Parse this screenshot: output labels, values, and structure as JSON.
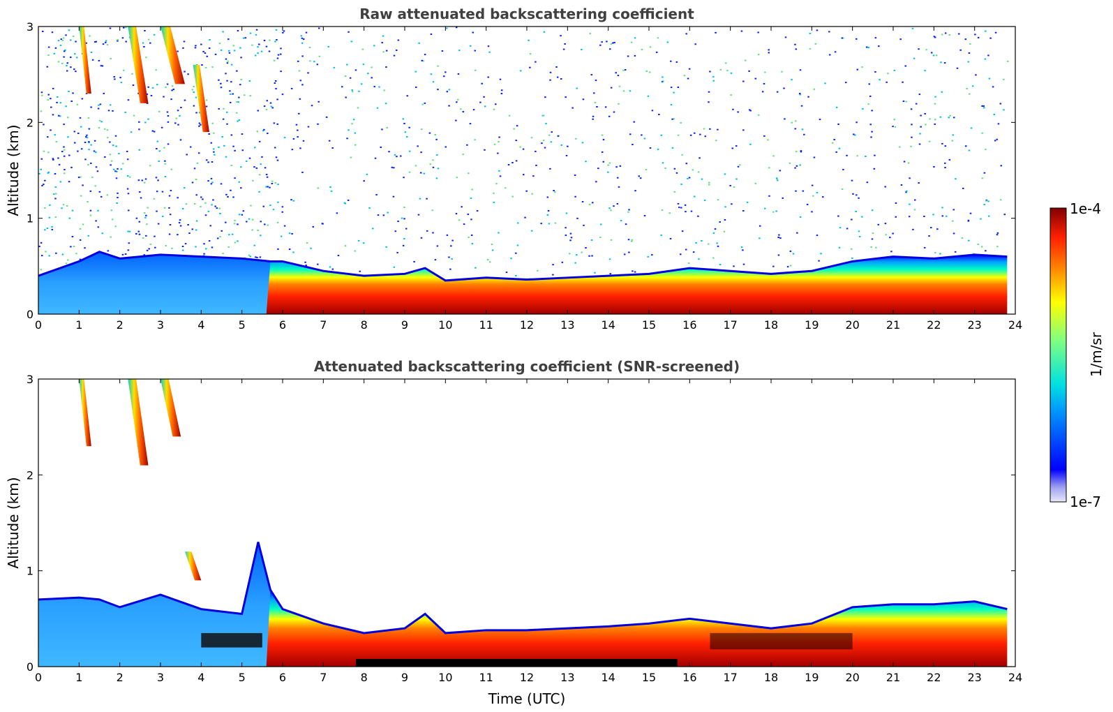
{
  "chart_data": [
    {
      "type": "heatmap",
      "title": "Raw attenuated backscattering coefficient",
      "xlabel": "",
      "ylabel": "Altitude (km)",
      "xlim": [
        0,
        24
      ],
      "ylim": [
        0,
        3
      ],
      "xticks": [
        0,
        1,
        2,
        3,
        4,
        5,
        6,
        7,
        8,
        9,
        10,
        11,
        12,
        13,
        14,
        15,
        16,
        17,
        18,
        19,
        20,
        21,
        22,
        23,
        24
      ],
      "yticks": [
        0,
        1,
        2,
        3
      ],
      "screened": false,
      "boundary_layer_top_km": {
        "time": [
          0,
          1,
          1.5,
          2,
          3,
          4,
          5,
          5.7,
          6,
          7,
          8,
          9,
          9.5,
          10,
          11,
          12,
          13,
          14,
          15,
          16,
          17,
          18,
          19,
          20,
          21,
          22,
          23,
          23.8
        ],
        "height": [
          0.4,
          0.55,
          0.65,
          0.58,
          0.62,
          0.6,
          0.58,
          0.55,
          0.55,
          0.45,
          0.4,
          0.42,
          0.48,
          0.35,
          0.38,
          0.36,
          0.38,
          0.4,
          0.42,
          0.48,
          0.45,
          0.42,
          0.45,
          0.55,
          0.6,
          0.58,
          0.62,
          0.6
        ]
      },
      "cloud_streaks": [
        {
          "t0": 1.0,
          "t1": 1.3,
          "z0": 2.3,
          "z1": 3.0
        },
        {
          "t0": 2.2,
          "t1": 2.7,
          "z0": 2.2,
          "z1": 3.0
        },
        {
          "t0": 3.0,
          "t1": 3.6,
          "z0": 2.4,
          "z1": 3.0
        },
        {
          "t0": 3.8,
          "t1": 4.2,
          "z0": 1.9,
          "z1": 2.6
        }
      ]
    },
    {
      "type": "heatmap",
      "title": "Attenuated backscattering coefficient (SNR-screened)",
      "xlabel": "Time (UTC)",
      "ylabel": "Altitude (km)",
      "xlim": [
        0,
        24
      ],
      "ylim": [
        0,
        3
      ],
      "xticks": [
        0,
        1,
        2,
        3,
        4,
        5,
        6,
        7,
        8,
        9,
        10,
        11,
        12,
        13,
        14,
        15,
        16,
        17,
        18,
        19,
        20,
        21,
        22,
        23,
        24
      ],
      "yticks": [
        0,
        1,
        2,
        3
      ],
      "screened": true,
      "boundary_layer_top_km": {
        "time": [
          0,
          1,
          1.5,
          2,
          3,
          4,
          5,
          5.4,
          5.7,
          6,
          7,
          8,
          9,
          9.5,
          10,
          11,
          12,
          13,
          14,
          15,
          16,
          17,
          18,
          19,
          20,
          21,
          22,
          23,
          23.8
        ],
        "height": [
          0.7,
          0.72,
          0.7,
          0.62,
          0.75,
          0.6,
          0.55,
          1.3,
          0.8,
          0.6,
          0.45,
          0.35,
          0.4,
          0.55,
          0.35,
          0.38,
          0.38,
          0.4,
          0.42,
          0.45,
          0.5,
          0.45,
          0.4,
          0.45,
          0.62,
          0.65,
          0.65,
          0.68,
          0.6
        ]
      },
      "cloud_streaks": [
        {
          "t0": 1.0,
          "t1": 1.3,
          "z0": 2.3,
          "z1": 3.0
        },
        {
          "t0": 2.2,
          "t1": 2.7,
          "z0": 2.1,
          "z1": 3.0
        },
        {
          "t0": 3.0,
          "t1": 3.5,
          "z0": 2.4,
          "z1": 3.0
        },
        {
          "t0": 3.6,
          "t1": 4.0,
          "z0": 0.9,
          "z1": 1.2
        }
      ]
    }
  ],
  "colorbar": {
    "label": "1/m/sr",
    "max_label": "1e-4",
    "min_label": "1e-7",
    "range": [
      1e-07,
      0.0001
    ],
    "scale": "log",
    "colormap": "jet"
  }
}
